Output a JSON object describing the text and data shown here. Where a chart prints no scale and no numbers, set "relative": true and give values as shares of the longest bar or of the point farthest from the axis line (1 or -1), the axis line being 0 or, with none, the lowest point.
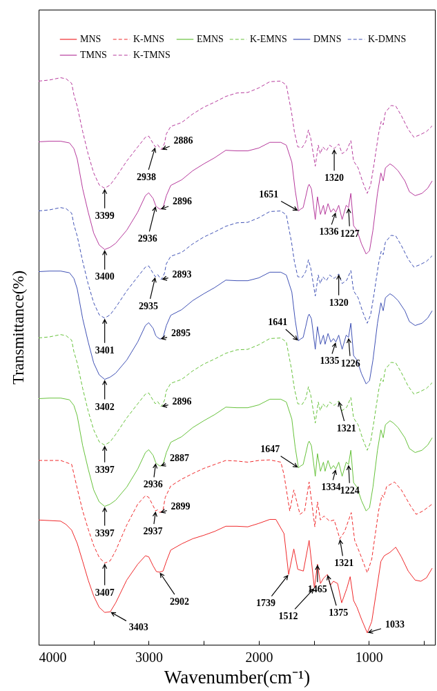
{
  "chart_data": {
    "type": "line",
    "xlabel": "Wavenumber(cm⁻¹)",
    "ylabel": "Transmittance(%)",
    "relative": true,
    "xlim": [
      4000,
      400
    ],
    "xticks": [
      4000,
      {
        "value": 3500,
        "label": null
      },
      3000,
      {
        "value": 2500,
        "label": null
      },
      2000,
      {
        "value": 1500,
        "label": null
      },
      1000,
      {
        "value": 500,
        "label": null
      }
    ],
    "grid": false,
    "legend": "top",
    "series": [
      {
        "name": "MNS",
        "color": "#f0282a",
        "line_style": "solid",
        "x": [
          4000,
          3900,
          3800,
          3750,
          3700,
          3650,
          3600,
          3550,
          3500,
          3450,
          3400,
          3350,
          3300,
          3200,
          3100,
          3030,
          3000,
          2960,
          2930,
          2902,
          2870,
          2840,
          2800,
          2700,
          2600,
          2500,
          2400,
          2300,
          2200,
          2100,
          2000,
          1900,
          1845,
          1771,
          1729,
          1682,
          1646,
          1595,
          1543,
          1495,
          1467,
          1440,
          1413,
          1377,
          1350,
          1322,
          1284,
          1247,
          1201,
          1170,
          1139,
          1108,
          1067,
          1015,
          974,
          932,
          891,
          860,
          808,
          756,
          705,
          643,
          580,
          528,
          477,
          425
        ],
        "values": [
          0.22,
          0.219,
          0.218,
          0.212,
          0.202,
          0.179,
          0.147,
          0.114,
          0.086,
          0.066,
          0.057,
          0.058,
          0.074,
          0.114,
          0.142,
          0.157,
          0.155,
          0.139,
          0.129,
          0.128,
          0.13,
          0.147,
          0.167,
          0.178,
          0.187,
          0.193,
          0.2,
          0.209,
          0.209,
          0.208,
          0.214,
          0.221,
          0.221,
          0.196,
          0.124,
          0.169,
          0.133,
          0.13,
          0.184,
          0.1,
          0.142,
          0.108,
          0.117,
          0.124,
          0.105,
          0.112,
          0.108,
          0.074,
          0.099,
          0.12,
          0.078,
          0.066,
          0.045,
          0.021,
          0.041,
          0.094,
          0.147,
          0.157,
          0.163,
          0.172,
          0.155,
          0.13,
          0.114,
          0.112,
          0.118,
          0.135
        ]
      },
      {
        "name": "K-MNS",
        "color": "#f0282a",
        "line_style": "dashed",
        "x": [
          4000,
          3900,
          3800,
          3700,
          3650,
          3600,
          3550,
          3500,
          3450,
          3400,
          3350,
          3300,
          3200,
          3100,
          3030,
          3000,
          2960,
          2937,
          2920,
          2899,
          2870,
          2850,
          2800,
          2700,
          2600,
          2500,
          2400,
          2300,
          2200,
          2100,
          2000,
          1900,
          1800,
          1771,
          1719,
          1682,
          1626,
          1584,
          1543,
          1491,
          1467,
          1440,
          1409,
          1356,
          1315,
          1264,
          1222,
          1160,
          1129,
          1077,
          1015,
          974,
          912,
          881,
          866,
          839,
          767,
          705,
          622,
          570,
          508,
          425
        ],
        "values": [
          0.325,
          0.325,
          0.325,
          0.318,
          0.276,
          0.236,
          0.204,
          0.175,
          0.154,
          0.144,
          0.148,
          0.166,
          0.211,
          0.248,
          0.263,
          0.26,
          0.245,
          0.236,
          0.238,
          0.233,
          0.238,
          0.26,
          0.28,
          0.292,
          0.302,
          0.311,
          0.318,
          0.325,
          0.324,
          0.322,
          0.325,
          0.326,
          0.322,
          0.3,
          0.236,
          0.273,
          0.23,
          0.236,
          0.287,
          0.208,
          0.252,
          0.22,
          0.227,
          0.218,
          0.22,
          0.187,
          0.199,
          0.233,
          0.184,
          0.159,
          0.127,
          0.151,
          0.236,
          0.264,
          0.26,
          0.279,
          0.287,
          0.273,
          0.245,
          0.23,
          0.236,
          0.248
        ]
      },
      {
        "name": "EMNS",
        "color": "#66c23a",
        "line_style": "solid",
        "x": [
          4000,
          3900,
          3800,
          3720,
          3680,
          3650,
          3600,
          3550,
          3500,
          3450,
          3400,
          3350,
          3300,
          3200,
          3100,
          3030,
          3000,
          2960,
          2936,
          2920,
          2896,
          2870,
          2840,
          2800,
          2700,
          2600,
          2500,
          2400,
          2300,
          2200,
          2100,
          2000,
          1900,
          1800,
          1750,
          1700,
          1670,
          1640,
          1622,
          1597,
          1574,
          1553,
          1543,
          1522,
          1487,
          1467,
          1440,
          1413,
          1398,
          1371,
          1346,
          1322,
          1300,
          1274,
          1243,
          1206,
          1185,
          1164,
          1139,
          1108,
          1067,
          1025,
          994,
          963,
          922,
          891,
          870,
          850,
          808,
          777,
          735,
          673,
          632,
          580,
          518,
          466,
          425
        ],
        "values": [
          0.434,
          0.435,
          0.435,
          0.432,
          0.422,
          0.404,
          0.351,
          0.31,
          0.273,
          0.252,
          0.244,
          0.248,
          0.255,
          0.278,
          0.31,
          0.339,
          0.344,
          0.334,
          0.321,
          0.318,
          0.315,
          0.318,
          0.339,
          0.357,
          0.367,
          0.383,
          0.395,
          0.406,
          0.419,
          0.418,
          0.418,
          0.423,
          0.433,
          0.433,
          0.428,
          0.398,
          0.349,
          0.312,
          0.315,
          0.318,
          0.337,
          0.355,
          0.359,
          0.351,
          0.297,
          0.337,
          0.306,
          0.322,
          0.306,
          0.325,
          0.31,
          0.316,
          0.31,
          0.322,
          0.297,
          0.322,
          0.318,
          0.343,
          0.286,
          0.278,
          0.254,
          0.236,
          0.242,
          0.278,
          0.343,
          0.379,
          0.365,
          0.388,
          0.395,
          0.391,
          0.383,
          0.365,
          0.346,
          0.339,
          0.343,
          0.352,
          0.365
        ]
      },
      {
        "name": "K-EMNS",
        "color": "#66c23a",
        "line_style": "dashed",
        "x": [
          4000,
          3900,
          3800,
          3750,
          3700,
          3680,
          3650,
          3600,
          3550,
          3500,
          3450,
          3400,
          3350,
          3300,
          3200,
          3100,
          3030,
          3000,
          2960,
          2940,
          2920,
          2886,
          2857,
          2840,
          2800,
          2700,
          2600,
          2500,
          2400,
          2300,
          2200,
          2100,
          2000,
          1900,
          1800,
          1750,
          1702,
          1677,
          1646,
          1605,
          1574,
          1549,
          1528,
          1487,
          1460,
          1441,
          1418,
          1387,
          1356,
          1315,
          1274,
          1243,
          1201,
          1164,
          1139,
          1098,
          1056,
          1015,
          984,
          953,
          912,
          888,
          870,
          850,
          798,
          756,
          705,
          643,
          591,
          539,
          477,
          425
        ],
        "values": [
          0.541,
          0.543,
          0.547,
          0.545,
          0.537,
          0.517,
          0.497,
          0.452,
          0.412,
          0.379,
          0.358,
          0.352,
          0.358,
          0.371,
          0.4,
          0.425,
          0.442,
          0.444,
          0.431,
          0.425,
          0.429,
          0.42,
          0.431,
          0.448,
          0.461,
          0.468,
          0.483,
          0.495,
          0.504,
          0.514,
          0.52,
          0.521,
          0.529,
          0.54,
          0.541,
          0.534,
          0.485,
          0.452,
          0.425,
          0.424,
          0.434,
          0.455,
          0.44,
          0.391,
          0.428,
          0.413,
          0.425,
          0.418,
          0.428,
          0.422,
          0.43,
          0.413,
          0.419,
          0.436,
          0.4,
          0.388,
          0.363,
          0.343,
          0.358,
          0.395,
          0.448,
          0.47,
          0.464,
          0.486,
          0.498,
          0.497,
          0.48,
          0.456,
          0.442,
          0.446,
          0.452,
          0.462
        ]
      },
      {
        "name": "DMNS",
        "color": "#3f51b5",
        "line_style": "solid",
        "x": [
          4000,
          3900,
          3800,
          3720,
          3680,
          3650,
          3600,
          3550,
          3500,
          3450,
          3400,
          3350,
          3300,
          3200,
          3100,
          3030,
          3000,
          2960,
          2936,
          2920,
          2896,
          2870,
          2840,
          2800,
          2700,
          2600,
          2500,
          2400,
          2300,
          2200,
          2100,
          2000,
          1900,
          1800,
          1750,
          1700,
          1670,
          1640,
          1622,
          1597,
          1574,
          1553,
          1543,
          1522,
          1487,
          1467,
          1440,
          1413,
          1398,
          1371,
          1346,
          1322,
          1300,
          1274,
          1243,
          1206,
          1185,
          1164,
          1139,
          1108,
          1067,
          1025,
          994,
          963,
          922,
          891,
          870,
          850,
          808,
          777,
          735,
          673,
          632,
          580,
          518,
          466,
          425
        ],
        "values": [
          0.658,
          0.659,
          0.659,
          0.656,
          0.646,
          0.628,
          0.575,
          0.534,
          0.497,
          0.476,
          0.468,
          0.472,
          0.479,
          0.502,
          0.534,
          0.563,
          0.568,
          0.558,
          0.545,
          0.542,
          0.539,
          0.542,
          0.563,
          0.581,
          0.591,
          0.607,
          0.619,
          0.63,
          0.643,
          0.642,
          0.642,
          0.647,
          0.657,
          0.657,
          0.652,
          0.622,
          0.573,
          0.536,
          0.539,
          0.542,
          0.561,
          0.579,
          0.583,
          0.575,
          0.521,
          0.561,
          0.53,
          0.546,
          0.53,
          0.549,
          0.534,
          0.54,
          0.534,
          0.546,
          0.521,
          0.546,
          0.542,
          0.567,
          0.51,
          0.502,
          0.478,
          0.46,
          0.466,
          0.502,
          0.567,
          0.603,
          0.589,
          0.612,
          0.619,
          0.615,
          0.607,
          0.589,
          0.57,
          0.563,
          0.567,
          0.576,
          0.589
        ]
      },
      {
        "name": "K-DMNS",
        "color": "#3f51b5",
        "line_style": "dashed",
        "x": [
          4000,
          3900,
          3800,
          3750,
          3700,
          3680,
          3650,
          3600,
          3550,
          3500,
          3450,
          3400,
          3350,
          3300,
          3200,
          3100,
          3030,
          3000,
          2960,
          2940,
          2920,
          2886,
          2857,
          2840,
          2800,
          2700,
          2600,
          2500,
          2400,
          2300,
          2200,
          2100,
          2000,
          1900,
          1800,
          1750,
          1702,
          1677,
          1646,
          1605,
          1574,
          1549,
          1528,
          1487,
          1460,
          1441,
          1418,
          1387,
          1356,
          1315,
          1274,
          1243,
          1201,
          1164,
          1139,
          1098,
          1056,
          1015,
          984,
          953,
          912,
          888,
          870,
          850,
          798,
          756,
          705,
          643,
          591,
          539,
          477,
          425
        ],
        "values": [
          0.765,
          0.767,
          0.771,
          0.769,
          0.761,
          0.741,
          0.721,
          0.676,
          0.636,
          0.603,
          0.582,
          0.576,
          0.582,
          0.595,
          0.624,
          0.649,
          0.666,
          0.668,
          0.655,
          0.649,
          0.653,
          0.644,
          0.655,
          0.672,
          0.685,
          0.692,
          0.707,
          0.719,
          0.728,
          0.738,
          0.744,
          0.745,
          0.753,
          0.764,
          0.765,
          0.758,
          0.709,
          0.676,
          0.649,
          0.648,
          0.658,
          0.679,
          0.664,
          0.615,
          0.652,
          0.637,
          0.649,
          0.642,
          0.652,
          0.646,
          0.654,
          0.637,
          0.643,
          0.66,
          0.624,
          0.612,
          0.587,
          0.567,
          0.582,
          0.619,
          0.672,
          0.694,
          0.688,
          0.71,
          0.722,
          0.721,
          0.704,
          0.68,
          0.666,
          0.67,
          0.676,
          0.686
        ]
      },
      {
        "name": "TMNS",
        "color": "#b6399c",
        "line_style": "solid",
        "x": [
          4000,
          3900,
          3800,
          3720,
          3680,
          3650,
          3600,
          3550,
          3500,
          3450,
          3400,
          3350,
          3300,
          3200,
          3100,
          3030,
          3000,
          2960,
          2936,
          2920,
          2896,
          2870,
          2840,
          2800,
          2700,
          2600,
          2500,
          2400,
          2300,
          2200,
          2100,
          2000,
          1900,
          1800,
          1750,
          1700,
          1670,
          1640,
          1622,
          1597,
          1574,
          1553,
          1543,
          1522,
          1487,
          1467,
          1440,
          1413,
          1398,
          1371,
          1346,
          1322,
          1300,
          1274,
          1243,
          1206,
          1185,
          1164,
          1139,
          1108,
          1067,
          1025,
          994,
          963,
          922,
          891,
          870,
          850,
          808,
          777,
          735,
          673,
          632,
          580,
          518,
          466,
          425
        ],
        "values": [
          0.887,
          0.888,
          0.888,
          0.885,
          0.875,
          0.857,
          0.804,
          0.763,
          0.726,
          0.705,
          0.697,
          0.701,
          0.708,
          0.731,
          0.763,
          0.792,
          0.797,
          0.787,
          0.774,
          0.771,
          0.768,
          0.771,
          0.792,
          0.81,
          0.82,
          0.836,
          0.848,
          0.859,
          0.872,
          0.871,
          0.871,
          0.876,
          0.886,
          0.886,
          0.881,
          0.851,
          0.802,
          0.765,
          0.768,
          0.771,
          0.79,
          0.808,
          0.812,
          0.804,
          0.75,
          0.79,
          0.759,
          0.775,
          0.759,
          0.778,
          0.763,
          0.769,
          0.763,
          0.775,
          0.75,
          0.775,
          0.771,
          0.796,
          0.739,
          0.731,
          0.707,
          0.689,
          0.695,
          0.731,
          0.796,
          0.832,
          0.818,
          0.841,
          0.848,
          0.844,
          0.836,
          0.818,
          0.799,
          0.792,
          0.796,
          0.805,
          0.818
        ]
      },
      {
        "name": "K-TMNS",
        "color": "#b6399c",
        "line_style": "dashed",
        "x": [
          4000,
          3900,
          3800,
          3750,
          3700,
          3680,
          3650,
          3600,
          3550,
          3500,
          3450,
          3400,
          3350,
          3300,
          3200,
          3100,
          3030,
          3000,
          2960,
          2940,
          2920,
          2886,
          2857,
          2840,
          2800,
          2700,
          2600,
          2500,
          2400,
          2300,
          2200,
          2100,
          2000,
          1900,
          1800,
          1750,
          1702,
          1677,
          1646,
          1605,
          1574,
          1549,
          1528,
          1487,
          1460,
          1441,
          1418,
          1387,
          1356,
          1315,
          1274,
          1243,
          1201,
          1164,
          1139,
          1098,
          1056,
          1015,
          984,
          953,
          912,
          888,
          870,
          850,
          798,
          756,
          705,
          643,
          591,
          539,
          477,
          425
        ],
        "values": [
          0.994,
          0.996,
          1.0,
          0.998,
          0.99,
          0.97,
          0.95,
          0.905,
          0.865,
          0.832,
          0.811,
          0.805,
          0.811,
          0.824,
          0.853,
          0.878,
          0.895,
          0.897,
          0.884,
          0.878,
          0.882,
          0.873,
          0.884,
          0.901,
          0.914,
          0.921,
          0.936,
          0.948,
          0.957,
          0.967,
          0.973,
          0.974,
          0.982,
          0.993,
          0.994,
          0.987,
          0.938,
          0.905,
          0.878,
          0.877,
          0.887,
          0.908,
          0.893,
          0.844,
          0.881,
          0.866,
          0.878,
          0.871,
          0.881,
          0.875,
          0.883,
          0.866,
          0.872,
          0.889,
          0.853,
          0.841,
          0.816,
          0.796,
          0.811,
          0.848,
          0.901,
          0.923,
          0.917,
          0.939,
          0.951,
          0.95,
          0.933,
          0.909,
          0.895,
          0.899,
          0.905,
          0.915
        ]
      }
    ],
    "annotations": [
      {
        "text": "3399",
        "x": 3400,
        "y": 0.805
      },
      {
        "text": "2938",
        "x": 2940,
        "y": 0.878
      },
      {
        "text": "2886",
        "x": 2886,
        "y": 0.873
      },
      {
        "text": "1320",
        "x": 1315,
        "y": 0.875
      },
      {
        "text": "3400",
        "x": 3400,
        "y": 0.697
      },
      {
        "text": "2936",
        "x": 2936,
        "y": 0.774
      },
      {
        "text": "2896",
        "x": 2896,
        "y": 0.768
      },
      {
        "text": "1651",
        "x": 1640,
        "y": 0.765
      },
      {
        "text": "1336",
        "x": 1300,
        "y": 0.763
      },
      {
        "text": "1227",
        "x": 1185,
        "y": 0.771
      },
      {
        "text": "3401",
        "x": 3400,
        "y": 0.576
      },
      {
        "text": "2935",
        "x": 2940,
        "y": 0.649
      },
      {
        "text": "2893",
        "x": 2886,
        "y": 0.644
      },
      {
        "text": "1320",
        "x": 1274,
        "y": 0.654
      },
      {
        "text": "3402",
        "x": 3400,
        "y": 0.468
      },
      {
        "text": "2895",
        "x": 2896,
        "y": 0.539
      },
      {
        "text": "1641",
        "x": 1640,
        "y": 0.536
      },
      {
        "text": "1335",
        "x": 1300,
        "y": 0.534
      },
      {
        "text": "1226",
        "x": 1185,
        "y": 0.542
      },
      {
        "text": "3397",
        "x": 3400,
        "y": 0.352
      },
      {
        "text": "2896",
        "x": 2886,
        "y": 0.42
      },
      {
        "text": "1321",
        "x": 1274,
        "y": 0.43
      },
      {
        "text": "3397",
        "x": 3400,
        "y": 0.244
      },
      {
        "text": "2936",
        "x": 2936,
        "y": 0.321
      },
      {
        "text": "2887",
        "x": 2896,
        "y": 0.315
      },
      {
        "text": "1647",
        "x": 1640,
        "y": 0.312
      },
      {
        "text": "1334",
        "x": 1300,
        "y": 0.31
      },
      {
        "text": "1224",
        "x": 1185,
        "y": 0.318
      },
      {
        "text": "3407",
        "x": 3400,
        "y": 0.144
      },
      {
        "text": "2937",
        "x": 2937,
        "y": 0.236
      },
      {
        "text": "2899",
        "x": 2899,
        "y": 0.233
      },
      {
        "text": "1321",
        "x": 1264,
        "y": 0.187
      },
      {
        "text": "3403",
        "x": 3350,
        "y": 0.058
      },
      {
        "text": "2902",
        "x": 2902,
        "y": 0.128
      },
      {
        "text": "1739",
        "x": 1729,
        "y": 0.124
      },
      {
        "text": "1512",
        "x": 1495,
        "y": 0.1
      },
      {
        "text": "1465",
        "x": 1467,
        "y": 0.142
      },
      {
        "text": "1375",
        "x": 1377,
        "y": 0.124
      },
      {
        "text": "1033",
        "x": 1015,
        "y": 0.021
      }
    ]
  }
}
